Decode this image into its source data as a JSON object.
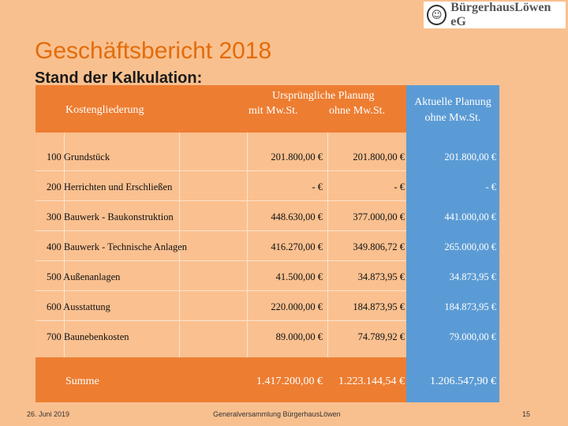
{
  "logo": {
    "text": "BürgerhausLöwen eG",
    "seal_glyph": "☺"
  },
  "title": "Geschäftsbericht 2018",
  "subtitle": "Stand der Kalkulation:",
  "table": {
    "header": {
      "col_label": "Kostengliederung",
      "original_group": "Ursprüngliche Planung",
      "with_vat": "mit Mw.St.",
      "without_vat": "ohne Mw.St.",
      "current_line1": "Aktuelle Planung",
      "current_line2": "ohne Mw.St."
    },
    "rows": [
      {
        "label": "100 Grundstück",
        "with_vat": "201.800,00 €",
        "without_vat": "201.800,00 €",
        "current": "201.800,00 €"
      },
      {
        "label": "200 Herrichten und Erschließen",
        "with_vat": "- €",
        "without_vat": "- €",
        "current": "- €"
      },
      {
        "label": "300 Bauwerk - Baukonstruktion",
        "with_vat": "448.630,00 €",
        "without_vat": "377.000,00 €",
        "current": "441.000,00 €"
      },
      {
        "label": "400 Bauwerk - Technische Anlagen",
        "with_vat": "416.270,00 €",
        "without_vat": "349.806,72 €",
        "current": "265.000,00 €"
      },
      {
        "label": "500 Außenanlagen",
        "with_vat": "41.500,00 €",
        "without_vat": "34.873,95 €",
        "current": "34.873,95 €"
      },
      {
        "label": "600 Ausstattung",
        "with_vat": "220.000,00 €",
        "without_vat": "184.873,95 €",
        "current": "184.873,95 €"
      },
      {
        "label": "700 Baunebenkosten",
        "with_vat": "89.000,00 €",
        "without_vat": "74.789,92 €",
        "current": "79.000,00 €"
      }
    ],
    "sum": {
      "label": "Summe",
      "with_vat": "1.417.200,00 €",
      "without_vat": "1.223.144,54 €",
      "current": "1.206.547,90 €"
    }
  },
  "footer": {
    "date": "26. Juni 2019",
    "center": "Generalversammlung BürgerhausLöwen",
    "page": "15"
  }
}
